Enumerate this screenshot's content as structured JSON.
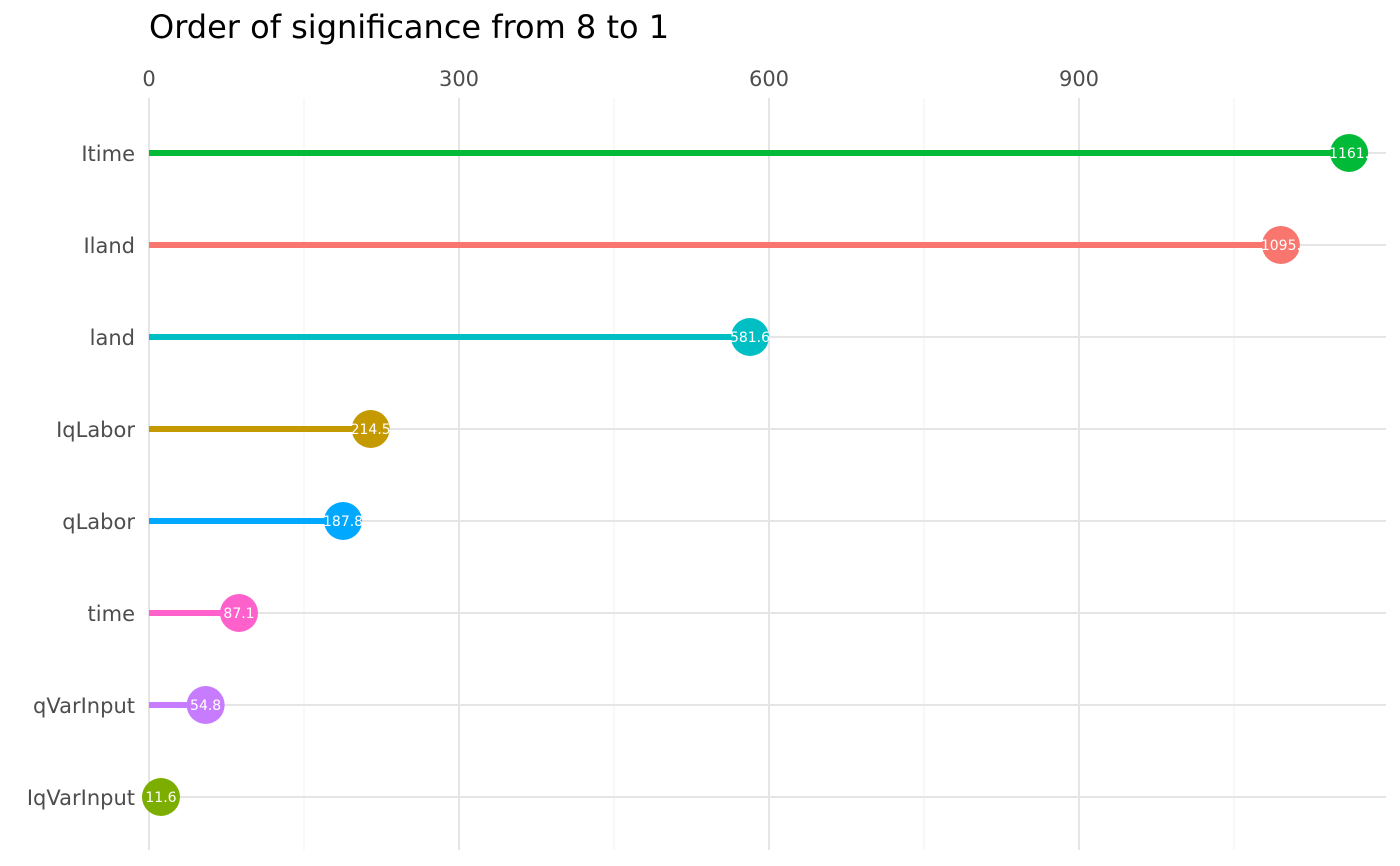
{
  "chart_data": {
    "type": "lollipop",
    "title": "Order of significance from 8 to 1",
    "xlabel": "",
    "ylabel": "",
    "x_ticks": [
      0,
      300,
      600,
      900
    ],
    "xlim": [
      0,
      1196
    ],
    "grid": true,
    "legend": "none",
    "categories": [
      "Itime",
      "Iland",
      "land",
      "IqLabor",
      "qLabor",
      "time",
      "qVarInput",
      "IqVarInput"
    ],
    "values": [
      1161.4,
      1095.4,
      581.6,
      214.5,
      187.8,
      87.1,
      54.8,
      11.6
    ],
    "value_labels": [
      "1161.",
      "1095.",
      "581.6",
      "214.5",
      "187.8",
      "87.1",
      "54.8",
      "11.6"
    ],
    "colors": [
      "#00BA38",
      "#F8766D",
      "#00BFC4",
      "#C49A00",
      "#00A9FF",
      "#FF61CC",
      "#C77CFF",
      "#7CAE00"
    ]
  }
}
